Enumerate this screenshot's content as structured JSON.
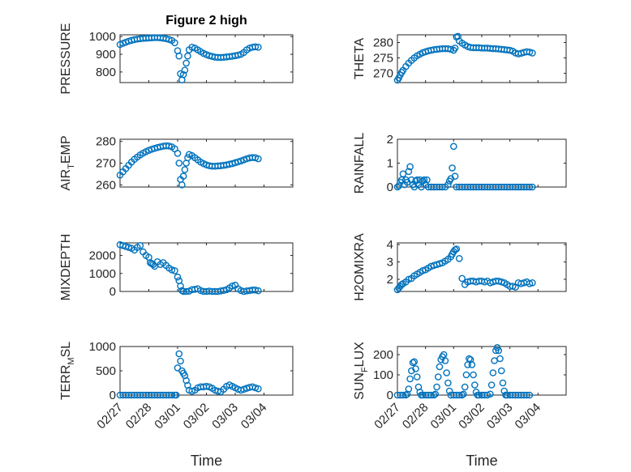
{
  "figure": {
    "title": "Figure 2 high",
    "marker_color": "#0072bd",
    "xlabel": "Time",
    "x_ticks": [
      "02/27",
      "02/28",
      "03/01",
      "03/02",
      "03/03",
      "03/04"
    ]
  },
  "chart_data": [
    {
      "type": "scatter",
      "name": "PRESSURE",
      "ylabel": "PRESSURE",
      "ylabel_parts": [
        "PRESSURE"
      ],
      "title": "Figure 2 high",
      "xlabel": "Time",
      "xlim": [
        0,
        6
      ],
      "ylim": [
        740,
        1010
      ],
      "y_ticks": [
        800,
        900,
        1000
      ],
      "x": [
        0.0,
        0.1,
        0.2,
        0.3,
        0.4,
        0.5,
        0.6,
        0.7,
        0.8,
        0.9,
        1.0,
        1.1,
        1.2,
        1.3,
        1.4,
        1.5,
        1.6,
        1.7,
        1.8,
        1.9,
        2.0,
        2.05,
        2.1,
        2.15,
        2.2,
        2.25,
        2.3,
        2.35,
        2.4,
        2.5,
        2.6,
        2.7,
        2.8,
        2.9,
        3.0,
        3.1,
        3.2,
        3.3,
        3.4,
        3.5,
        3.6,
        3.7,
        3.8,
        3.9,
        4.0,
        4.1,
        4.2,
        4.3,
        4.4,
        4.5,
        4.6,
        4.7,
        4.8
      ],
      "y": [
        955,
        962,
        968,
        974,
        979,
        983,
        986,
        988,
        990,
        991,
        992,
        993,
        994,
        994,
        993,
        991,
        988,
        984,
        978,
        965,
        920,
        890,
        790,
        755,
        785,
        810,
        850,
        890,
        925,
        940,
        935,
        925,
        915,
        905,
        898,
        892,
        888,
        884,
        882,
        882,
        883,
        885,
        887,
        889,
        892,
        895,
        900,
        910,
        925,
        935,
        940,
        942,
        940
      ]
    },
    {
      "type": "scatter",
      "name": "THETA",
      "ylabel": "THETA",
      "ylabel_parts": [
        "THETA"
      ],
      "xlim": [
        0,
        6
      ],
      "ylim": [
        267,
        282.5
      ],
      "y_ticks": [
        270,
        275,
        280
      ],
      "x": [
        0.0,
        0.05,
        0.1,
        0.15,
        0.2,
        0.3,
        0.4,
        0.5,
        0.6,
        0.7,
        0.8,
        0.9,
        1.0,
        1.1,
        1.2,
        1.3,
        1.4,
        1.5,
        1.6,
        1.7,
        1.8,
        1.9,
        2.0,
        2.05,
        2.1,
        2.15,
        2.2,
        2.3,
        2.4,
        2.5,
        2.6,
        2.7,
        2.8,
        2.9,
        3.0,
        3.1,
        3.2,
        3.3,
        3.4,
        3.5,
        3.6,
        3.7,
        3.8,
        3.9,
        4.0,
        4.1,
        4.2,
        4.3,
        4.4,
        4.5,
        4.6,
        4.7,
        4.8
      ],
      "y": [
        267.8,
        268.5,
        269.5,
        270.3,
        271.0,
        272.2,
        273.3,
        274.2,
        275.0,
        275.7,
        276.2,
        276.7,
        277.0,
        277.3,
        277.5,
        277.7,
        277.8,
        277.9,
        278.0,
        278.0,
        278.0,
        277.8,
        277.5,
        278.2,
        281.8,
        282.0,
        280.5,
        279.8,
        279.2,
        278.7,
        278.4,
        278.3,
        278.3,
        278.3,
        278.2,
        278.2,
        278.2,
        278.1,
        278.0,
        278.0,
        277.9,
        277.8,
        277.7,
        277.6,
        277.5,
        277.2,
        276.6,
        276.3,
        276.5,
        276.8,
        277.0,
        276.9,
        276.6
      ]
    },
    {
      "type": "scatter",
      "name": "AIR_TEMP",
      "ylabel": "AIR_TEMP",
      "ylabel_parts": [
        "AIR",
        "T",
        "EMP"
      ],
      "xlim": [
        0,
        6
      ],
      "ylim": [
        259,
        281
      ],
      "y_ticks": [
        260,
        270,
        280
      ],
      "x": [
        0.0,
        0.1,
        0.2,
        0.3,
        0.4,
        0.5,
        0.6,
        0.7,
        0.8,
        0.9,
        1.0,
        1.1,
        1.2,
        1.3,
        1.4,
        1.5,
        1.6,
        1.7,
        1.8,
        1.9,
        2.0,
        2.05,
        2.1,
        2.15,
        2.2,
        2.25,
        2.3,
        2.35,
        2.4,
        2.5,
        2.6,
        2.7,
        2.8,
        2.9,
        3.0,
        3.1,
        3.2,
        3.3,
        3.4,
        3.5,
        3.6,
        3.7,
        3.8,
        3.9,
        4.0,
        4.1,
        4.2,
        4.3,
        4.4,
        4.5,
        4.6,
        4.7,
        4.8
      ],
      "y": [
        264.5,
        266,
        267.5,
        269,
        270.5,
        271.8,
        272.8,
        273.8,
        274.6,
        275.3,
        275.9,
        276.4,
        276.8,
        277.2,
        277.5,
        277.8,
        278.0,
        277.9,
        277.5,
        276.6,
        274.5,
        270.0,
        262.5,
        260.0,
        264.0,
        267.0,
        270.0,
        272.5,
        274.0,
        273.5,
        272.5,
        271.5,
        270.5,
        269.8,
        269.2,
        268.8,
        268.6,
        268.6,
        268.7,
        268.8,
        269.0,
        269.2,
        269.5,
        269.8,
        270.2,
        270.6,
        271.0,
        271.5,
        272.0,
        272.4,
        272.6,
        272.5,
        272.0
      ]
    },
    {
      "type": "scatter",
      "name": "RAINFALL",
      "ylabel": "RAINFALL",
      "ylabel_parts": [
        "RAINFALL"
      ],
      "xlim": [
        0,
        6
      ],
      "ylim": [
        0,
        2
      ],
      "y_ticks": [
        0,
        1,
        2
      ],
      "x": [
        0.0,
        0.05,
        0.1,
        0.15,
        0.2,
        0.25,
        0.3,
        0.35,
        0.4,
        0.45,
        0.5,
        0.55,
        0.6,
        0.65,
        0.7,
        0.75,
        0.8,
        0.85,
        0.9,
        0.95,
        1.0,
        1.05,
        1.1,
        1.2,
        1.3,
        1.4,
        1.5,
        1.6,
        1.7,
        1.8,
        1.85,
        1.9,
        1.95,
        2.0,
        2.05,
        2.1,
        2.2,
        2.3,
        2.4,
        2.5,
        2.6,
        2.7,
        2.8,
        2.9,
        3.0,
        3.1,
        3.2,
        3.3,
        3.4,
        3.5,
        3.6,
        3.7,
        3.8,
        3.9,
        4.0,
        4.1,
        4.2,
        4.3,
        4.4,
        4.5,
        4.6,
        4.7,
        4.8
      ],
      "y": [
        0.0,
        0.05,
        0.2,
        0.3,
        0.55,
        0.1,
        0.3,
        0.2,
        0.65,
        0.85,
        0.3,
        0.1,
        0.0,
        0.25,
        0.3,
        0.1,
        0.3,
        0.0,
        0.25,
        0.3,
        0.1,
        0.3,
        0.0,
        0.0,
        0.0,
        0.0,
        0.0,
        0.0,
        0.0,
        0.1,
        0.25,
        0.35,
        0.8,
        1.7,
        0.45,
        0.0,
        0.0,
        0.0,
        0.0,
        0.0,
        0.0,
        0.0,
        0.0,
        0.0,
        0.0,
        0.0,
        0.0,
        0.0,
        0.0,
        0.0,
        0.0,
        0.0,
        0.0,
        0.0,
        0.0,
        0.0,
        0.0,
        0.0,
        0.0,
        0.0,
        0.0,
        0.0,
        0.0
      ]
    },
    {
      "type": "scatter",
      "name": "MIXDEPTH",
      "ylabel": "MIXDEPTH",
      "ylabel_parts": [
        "MIXDEPTH"
      ],
      "xlim": [
        0,
        6
      ],
      "ylim": [
        0,
        2700
      ],
      "y_ticks": [
        0,
        1000,
        2000
      ],
      "x": [
        0.0,
        0.1,
        0.2,
        0.3,
        0.4,
        0.5,
        0.6,
        0.7,
        0.8,
        0.9,
        1.0,
        1.05,
        1.1,
        1.15,
        1.2,
        1.3,
        1.4,
        1.5,
        1.6,
        1.7,
        1.8,
        1.9,
        2.0,
        2.05,
        2.1,
        2.15,
        2.2,
        2.3,
        2.4,
        2.5,
        2.6,
        2.7,
        2.8,
        2.9,
        3.0,
        3.1,
        3.2,
        3.3,
        3.4,
        3.5,
        3.6,
        3.7,
        3.8,
        3.9,
        4.0,
        4.1,
        4.2,
        4.3,
        4.4,
        4.5,
        4.6,
        4.7,
        4.8
      ],
      "y": [
        2600,
        2550,
        2500,
        2450,
        2400,
        2300,
        2450,
        2550,
        2200,
        2000,
        1900,
        1600,
        1550,
        1500,
        1400,
        1650,
        1500,
        1600,
        1450,
        1300,
        1200,
        1150,
        800,
        600,
        300,
        50,
        0,
        0,
        20,
        100,
        120,
        150,
        50,
        0,
        0,
        20,
        0,
        0,
        0,
        30,
        60,
        100,
        200,
        300,
        350,
        150,
        50,
        0,
        30,
        50,
        80,
        80,
        40
      ]
    },
    {
      "type": "scatter",
      "name": "H2OMIXRA",
      "ylabel": "H2OMIXRA",
      "ylabel_parts": [
        "H2OMIXRA"
      ],
      "xlim": [
        0,
        6
      ],
      "ylim": [
        1.3,
        4.1
      ],
      "y_ticks": [
        2,
        3,
        4
      ],
      "x": [
        0.0,
        0.05,
        0.1,
        0.15,
        0.2,
        0.3,
        0.4,
        0.5,
        0.6,
        0.7,
        0.8,
        0.9,
        1.0,
        1.1,
        1.2,
        1.3,
        1.4,
        1.5,
        1.6,
        1.7,
        1.8,
        1.9,
        1.95,
        2.0,
        2.05,
        2.1,
        2.2,
        2.3,
        2.4,
        2.5,
        2.6,
        2.7,
        2.8,
        2.9,
        3.0,
        3.1,
        3.2,
        3.3,
        3.4,
        3.5,
        3.6,
        3.7,
        3.8,
        3.9,
        4.0,
        4.1,
        4.2,
        4.3,
        4.4,
        4.5,
        4.6,
        4.7,
        4.8
      ],
      "y": [
        1.4,
        1.5,
        1.6,
        1.7,
        1.75,
        1.85,
        2.0,
        2.05,
        2.2,
        2.3,
        2.4,
        2.5,
        2.55,
        2.65,
        2.75,
        2.8,
        2.85,
        2.9,
        2.95,
        3.05,
        3.15,
        3.3,
        3.45,
        3.6,
        3.7,
        3.75,
        3.2,
        2.05,
        1.7,
        1.85,
        1.9,
        1.9,
        1.85,
        1.9,
        1.9,
        1.85,
        1.9,
        1.8,
        1.85,
        1.9,
        1.9,
        1.85,
        1.8,
        1.7,
        1.6,
        1.6,
        1.55,
        1.8,
        1.75,
        1.8,
        1.85,
        1.75,
        1.8
      ]
    },
    {
      "type": "scatter",
      "name": "TERR_MSL",
      "ylabel": "TERR_MSL",
      "ylabel_parts": [
        "TERR",
        "M",
        "SL"
      ],
      "xlim": [
        0,
        6
      ],
      "ylim": [
        0,
        1000
      ],
      "y_ticks": [
        0,
        500,
        1000
      ],
      "x": [
        0.0,
        0.1,
        0.2,
        0.3,
        0.4,
        0.5,
        0.6,
        0.7,
        0.8,
        0.9,
        1.0,
        1.1,
        1.2,
        1.3,
        1.4,
        1.5,
        1.6,
        1.7,
        1.8,
        1.9,
        1.95,
        2.0,
        2.05,
        2.1,
        2.15,
        2.2,
        2.25,
        2.3,
        2.35,
        2.4,
        2.5,
        2.6,
        2.7,
        2.8,
        2.9,
        3.0,
        3.1,
        3.2,
        3.3,
        3.4,
        3.5,
        3.6,
        3.7,
        3.8,
        3.9,
        4.0,
        4.1,
        4.2,
        4.3,
        4.4,
        4.5,
        4.6,
        4.7,
        4.8
      ],
      "y": [
        0,
        0,
        0,
        0,
        0,
        0,
        0,
        0,
        0,
        0,
        0,
        0,
        0,
        0,
        0,
        0,
        0,
        0,
        0,
        0,
        0,
        560,
        850,
        700,
        500,
        450,
        400,
        300,
        200,
        100,
        80,
        100,
        150,
        170,
        170,
        180,
        170,
        140,
        100,
        80,
        70,
        120,
        180,
        210,
        180,
        150,
        120,
        100,
        120,
        140,
        160,
        170,
        150,
        130
      ]
    },
    {
      "type": "scatter",
      "name": "SUN_FLUX",
      "ylabel": "SUN_FLUX",
      "ylabel_parts": [
        "SUN",
        "F",
        "LUX"
      ],
      "xlim": [
        0,
        6
      ],
      "ylim": [
        0,
        240
      ],
      "y_ticks": [
        0,
        100,
        200
      ],
      "x": [
        0.0,
        0.1,
        0.2,
        0.3,
        0.35,
        0.4,
        0.45,
        0.5,
        0.55,
        0.6,
        0.65,
        0.7,
        0.75,
        0.8,
        0.85,
        0.9,
        1.0,
        1.1,
        1.2,
        1.3,
        1.35,
        1.4,
        1.45,
        1.5,
        1.55,
        1.6,
        1.65,
        1.7,
        1.75,
        1.8,
        1.85,
        1.9,
        2.0,
        2.1,
        2.2,
        2.3,
        2.35,
        2.4,
        2.45,
        2.5,
        2.55,
        2.6,
        2.65,
        2.7,
        2.75,
        2.8,
        2.85,
        2.9,
        3.0,
        3.1,
        3.2,
        3.3,
        3.35,
        3.4,
        3.45,
        3.5,
        3.55,
        3.6,
        3.65,
        3.7,
        3.75,
        3.8,
        3.85,
        3.9,
        4.0,
        4.1,
        4.2,
        4.3,
        4.4,
        4.5,
        4.6,
        4.7
      ],
      "y": [
        0,
        0,
        0,
        0,
        5,
        30,
        80,
        120,
        160,
        165,
        130,
        90,
        40,
        15,
        0,
        0,
        0,
        0,
        0,
        0,
        5,
        40,
        90,
        140,
        175,
        190,
        200,
        170,
        110,
        60,
        20,
        0,
        0,
        0,
        0,
        0,
        5,
        40,
        100,
        150,
        180,
        175,
        150,
        100,
        50,
        15,
        0,
        0,
        0,
        0,
        0,
        5,
        50,
        110,
        170,
        220,
        235,
        220,
        180,
        120,
        60,
        20,
        0,
        0,
        0,
        0,
        0,
        0,
        0,
        0,
        0,
        0
      ]
    }
  ]
}
